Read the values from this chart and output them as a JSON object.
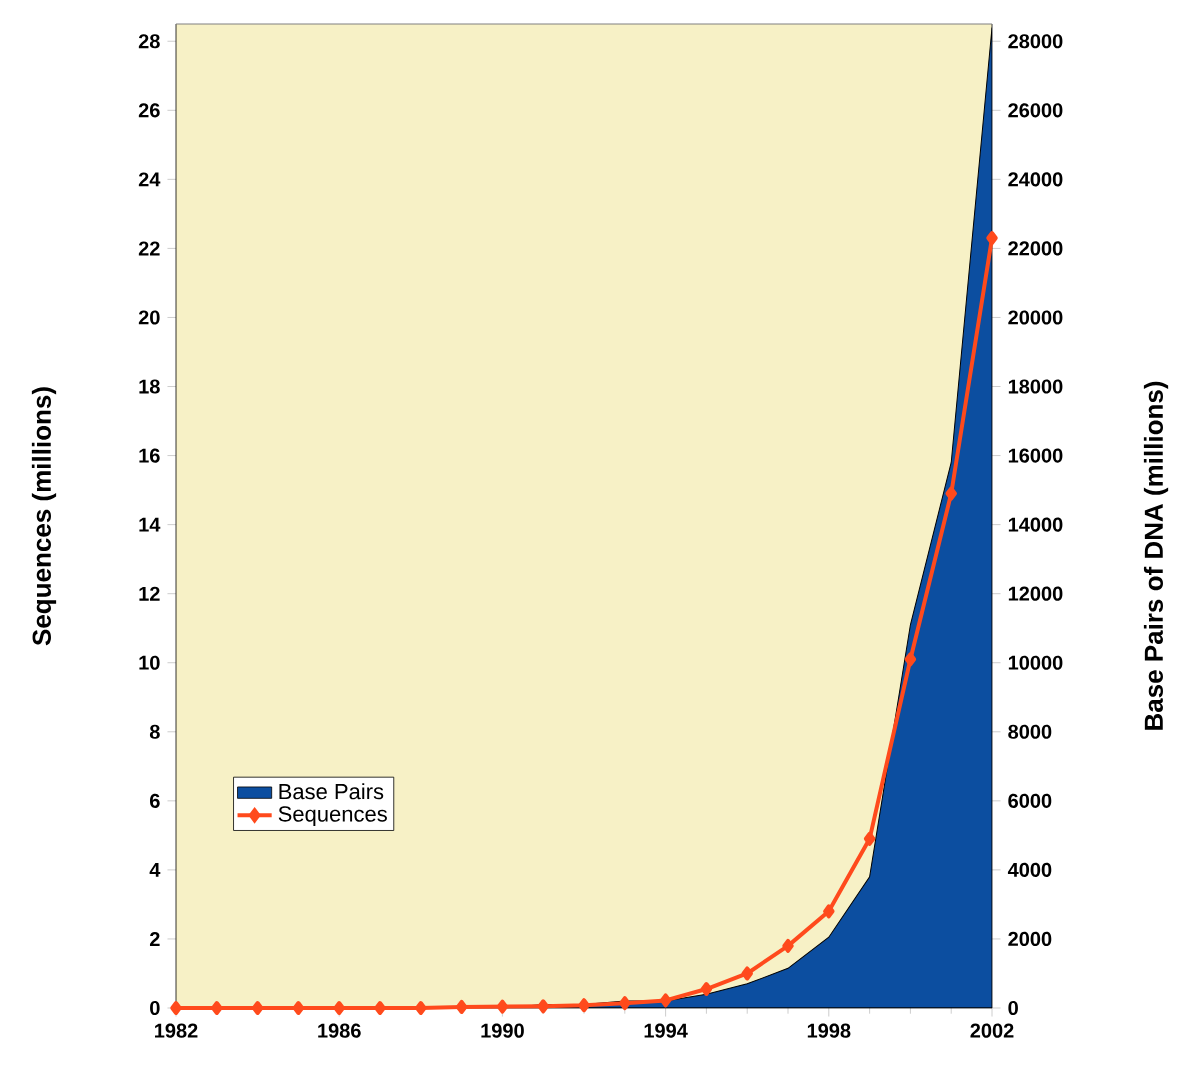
{
  "chart_data": {
    "type": "line",
    "ylabel": "Sequences (millions)",
    "y2label": "Base Pairs of DNA (millions)",
    "x": [
      1982,
      1983,
      1984,
      1985,
      1986,
      1987,
      1988,
      1989,
      1990,
      1991,
      1992,
      1993,
      1994,
      1995,
      1996,
      1997,
      1998,
      1999,
      2000,
      2001,
      2002
    ],
    "series": [
      {
        "name": "Base Pairs",
        "type": "area",
        "axis": "y2",
        "color": "#0c4ea0",
        "values": [
          0,
          0,
          0,
          0,
          0,
          0,
          0,
          0,
          0,
          100,
          100,
          200,
          200,
          400,
          700,
          1150,
          2050,
          3800,
          11100,
          15800,
          28400
        ]
      },
      {
        "name": "Sequences",
        "color": "#ff4a1c",
        "marker": "diamond",
        "values": [
          0,
          0,
          0,
          0,
          0,
          0,
          0,
          0.03,
          0.04,
          0.05,
          0.08,
          0.14,
          0.22,
          0.55,
          1.0,
          1.8,
          2.8,
          4.9,
          10.1,
          14.9,
          22.3
        ]
      }
    ],
    "xlim": [
      1982,
      2002
    ],
    "xticks": [
      1982,
      1986,
      1990,
      1994,
      1998,
      2002
    ],
    "ylim": [
      0,
      28.5
    ],
    "yticks": [
      0,
      2,
      4,
      6,
      8,
      10,
      12,
      14,
      16,
      18,
      20,
      22,
      24,
      26,
      28
    ],
    "y2lim": [
      0,
      28500
    ],
    "y2ticks": [
      0,
      2000,
      4000,
      6000,
      8000,
      10000,
      12000,
      14000,
      16000,
      18000,
      20000,
      22000,
      24000,
      26000,
      28000
    ],
    "legend": "bottom left",
    "grid": false
  }
}
